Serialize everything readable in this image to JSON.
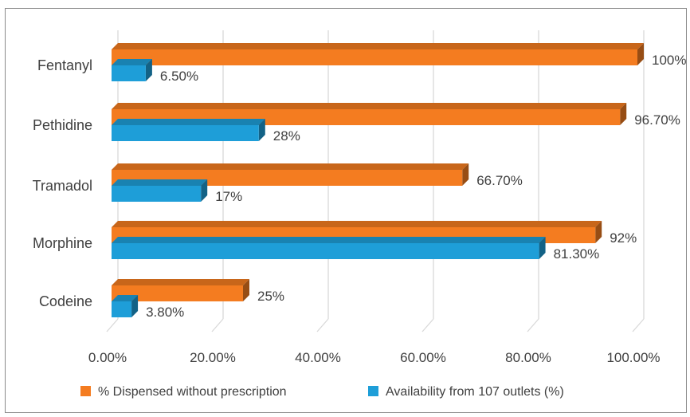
{
  "chart_data": {
    "type": "bar",
    "orientation": "horizontal",
    "categories": [
      "Fentanyl",
      "Pethidine",
      "Tramadol",
      "Morphine",
      "Codeine"
    ],
    "series": [
      {
        "name": "% Dispensed without prescription",
        "color": "#F47C20",
        "values": [
          100,
          96.7,
          66.7,
          92,
          25
        ],
        "labels": [
          "100%",
          "96.70%",
          "66.70%",
          "92%",
          "25%"
        ]
      },
      {
        "name": "Availability from 107 outlets (%)",
        "color": "#1E9ED8",
        "values": [
          6.5,
          28,
          17,
          81.3,
          3.8
        ],
        "labels": [
          "6.50%",
          "28%",
          "17%",
          "81.30%",
          "3.80%"
        ]
      }
    ],
    "x_ticks": [
      "0.00%",
      "20.00%",
      "40.00%",
      "60.00%",
      "80.00%",
      "100.00%"
    ],
    "xlim": [
      0,
      100
    ],
    "grid": true,
    "legend_position": "bottom",
    "style": "3d"
  }
}
